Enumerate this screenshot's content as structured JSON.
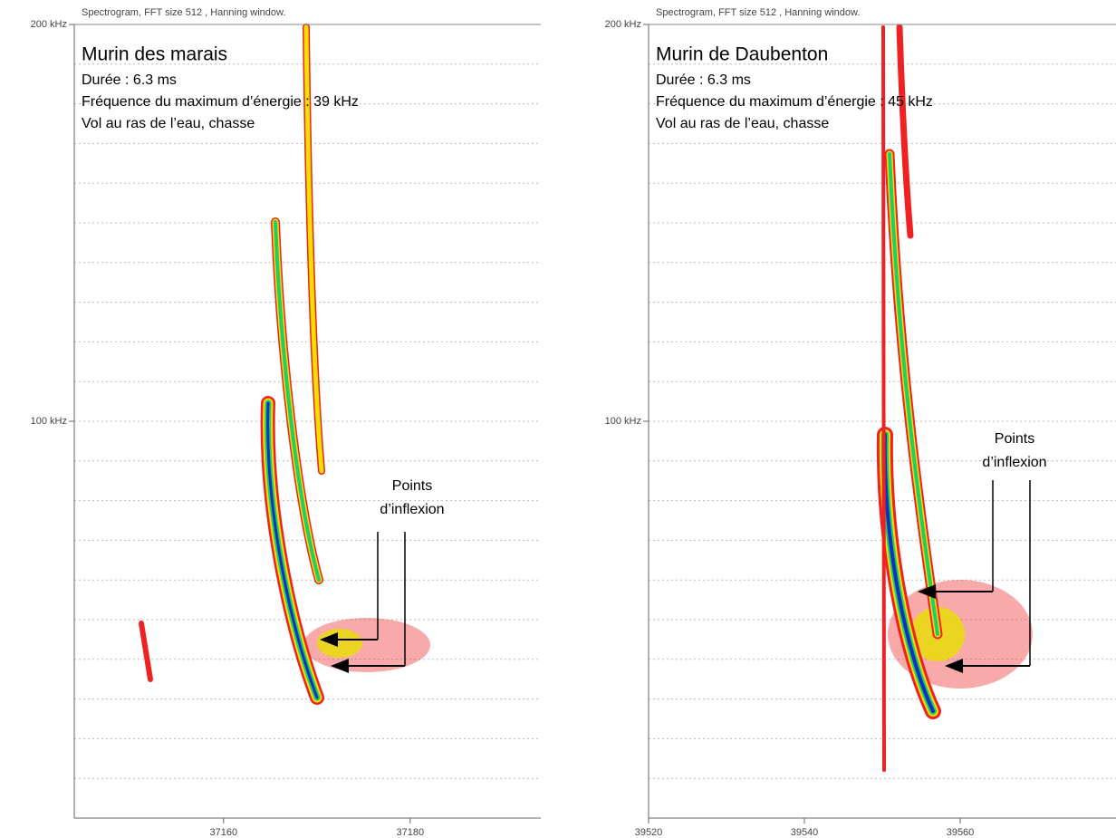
{
  "chart_data": [
    {
      "type": "spectrogram",
      "header": "Spectrogram, FFT size 512 , Hanning window.",
      "title": "Murin des marais",
      "lines": [
        "Durée : 6.3 ms",
        "Fréquence du maximum d’énergie : 39 kHz",
        "Vol au ras de l’eau, chasse"
      ],
      "annotation": [
        "Points",
        "d’inflexion"
      ],
      "xlim": [
        37144,
        37194
      ],
      "xticks": [
        37160,
        37180
      ],
      "ylim": [
        0,
        200
      ],
      "yticks": [
        {
          "value": 200,
          "label": "200 kHz"
        },
        {
          "value": 100,
          "label": "100 kHz"
        }
      ],
      "grid": true,
      "grid_step": 10
    },
    {
      "type": "spectrogram",
      "header": "Spectrogram, FFT size 512 , Hanning window.",
      "title": "Murin de Daubenton",
      "lines": [
        "Durée : 6.3 ms",
        "Fréquence du maximum d’énergie : 45 kHz",
        "Vol au ras de l’eau, chasse"
      ],
      "annotation": [
        "Points",
        "d’inflexion"
      ],
      "xlim": [
        39520,
        39580
      ],
      "xticks": [
        39520,
        39540,
        39560
      ],
      "ylim": [
        0,
        200
      ],
      "yticks": [
        {
          "value": 200,
          "label": "200 kHz"
        },
        {
          "value": 100,
          "label": "100 kHz"
        }
      ],
      "grid": true,
      "grid_step": 10
    }
  ]
}
